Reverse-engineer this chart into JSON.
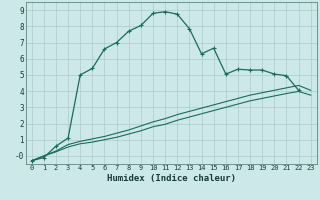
{
  "xlabel": "Humidex (Indice chaleur)",
  "bg_color": "#cce8e8",
  "grid_color": "#aacccc",
  "line_color": "#1a6b5a",
  "xlim": [
    -0.5,
    23.5
  ],
  "ylim": [
    -0.5,
    9.5
  ],
  "xticks": [
    0,
    1,
    2,
    3,
    4,
    5,
    6,
    7,
    8,
    9,
    10,
    11,
    12,
    13,
    14,
    15,
    16,
    17,
    18,
    19,
    20,
    21,
    22,
    23
  ],
  "yticks": [
    0,
    1,
    2,
    3,
    4,
    5,
    6,
    7,
    8,
    9
  ],
  "ytick_labels": [
    "-0",
    "1",
    "2",
    "3",
    "4",
    "5",
    "6",
    "7",
    "8",
    "9"
  ],
  "curve1_x": [
    0,
    1,
    2,
    3,
    4,
    5,
    6,
    7,
    8,
    9,
    10,
    11,
    12,
    13,
    14,
    15,
    16,
    17,
    18,
    19,
    20,
    21,
    22
  ],
  "curve1_y": [
    -0.3,
    -0.1,
    0.6,
    1.1,
    5.0,
    5.4,
    6.6,
    7.0,
    7.7,
    8.05,
    8.8,
    8.9,
    8.75,
    7.85,
    6.3,
    6.65,
    5.05,
    5.35,
    5.3,
    5.3,
    5.05,
    4.95,
    4.05
  ],
  "curve2_x": [
    0,
    1,
    2,
    3,
    4,
    5,
    6,
    7,
    8,
    9,
    10,
    11,
    12,
    13,
    14,
    15,
    16,
    17,
    18,
    19,
    20,
    21,
    22,
    23
  ],
  "curve2_y": [
    -0.3,
    0.0,
    0.3,
    0.7,
    0.9,
    1.05,
    1.2,
    1.4,
    1.6,
    1.85,
    2.1,
    2.3,
    2.55,
    2.75,
    2.95,
    3.15,
    3.35,
    3.55,
    3.75,
    3.9,
    4.05,
    4.2,
    4.35,
    4.05
  ],
  "curve3_x": [
    0,
    1,
    2,
    3,
    4,
    5,
    6,
    7,
    8,
    9,
    10,
    11,
    12,
    13,
    14,
    15,
    16,
    17,
    18,
    19,
    20,
    21,
    22,
    23
  ],
  "curve3_y": [
    -0.3,
    0.0,
    0.25,
    0.55,
    0.75,
    0.85,
    1.0,
    1.15,
    1.35,
    1.55,
    1.8,
    1.95,
    2.2,
    2.4,
    2.6,
    2.8,
    3.0,
    3.2,
    3.4,
    3.55,
    3.7,
    3.85,
    3.98,
    3.75
  ]
}
